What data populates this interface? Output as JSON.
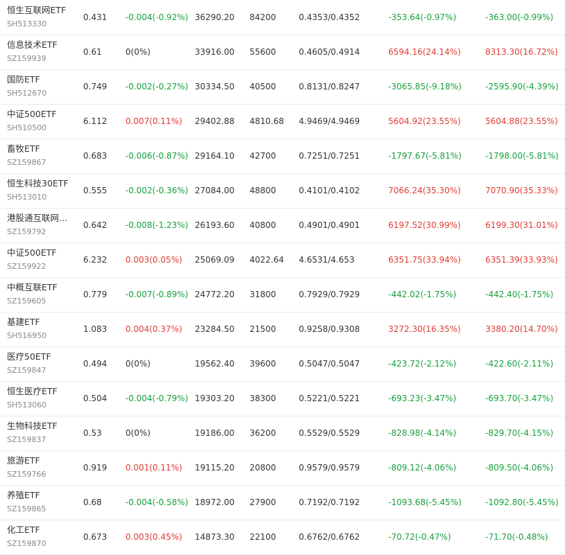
{
  "colors": {
    "up": "#e03b30",
    "down": "#16a03c",
    "flat": "#333333"
  },
  "rows": [
    {
      "name": "恒生互联网ETF",
      "code": "SH513330",
      "price": "0.431",
      "change": "-0.004(-0.92%)",
      "dir": "down",
      "amount": "36290.20",
      "volume": "84200",
      "bidask": "0.4353/0.4352",
      "v1": "-353.64(-0.97%)",
      "d1": "down",
      "v2": "-363.00(-0.99%)",
      "d2": "down"
    },
    {
      "name": "信息技术ETF",
      "code": "SZ159939",
      "price": "0.61",
      "change": "0(0%)",
      "dir": "flat",
      "amount": "33916.00",
      "volume": "55600",
      "bidask": "0.4605/0.4914",
      "v1": "6594.16(24.14%)",
      "d1": "up",
      "v2": "8313.30(16.72%)",
      "d2": "up"
    },
    {
      "name": "国防ETF",
      "code": "SH512670",
      "price": "0.749",
      "change": "-0.002(-0.27%)",
      "dir": "down",
      "amount": "30334.50",
      "volume": "40500",
      "bidask": "0.8131/0.8247",
      "v1": "-3065.85(-9.18%)",
      "d1": "down",
      "v2": "-2595.90(-4.39%)",
      "d2": "down"
    },
    {
      "name": "中证500ETF",
      "code": "SH510500",
      "price": "6.112",
      "change": "0.007(0.11%)",
      "dir": "up",
      "amount": "29402.88",
      "volume": "4810.68",
      "bidask": "4.9469/4.9469",
      "v1": "5604.92(23.55%)",
      "d1": "up",
      "v2": "5604.88(23.55%)",
      "d2": "up"
    },
    {
      "name": "畜牧ETF",
      "code": "SZ159867",
      "price": "0.683",
      "change": "-0.006(-0.87%)",
      "dir": "down",
      "amount": "29164.10",
      "volume": "42700",
      "bidask": "0.7251/0.7251",
      "v1": "-1797.67(-5.81%)",
      "d1": "down",
      "v2": "-1798.00(-5.81%)",
      "d2": "down"
    },
    {
      "name": "恒生科技30ETF",
      "code": "SH513010",
      "price": "0.555",
      "change": "-0.002(-0.36%)",
      "dir": "down",
      "amount": "27084.00",
      "volume": "48800",
      "bidask": "0.4101/0.4102",
      "v1": "7066.24(35.30%)",
      "d1": "up",
      "v2": "7070.90(35.33%)",
      "d2": "up"
    },
    {
      "name": "港股通互联网…",
      "code": "SZ159792",
      "price": "0.642",
      "change": "-0.008(-1.23%)",
      "dir": "down",
      "amount": "26193.60",
      "volume": "40800",
      "bidask": "0.4901/0.4901",
      "v1": "6197.52(30.99%)",
      "d1": "up",
      "v2": "6199.30(31.01%)",
      "d2": "up"
    },
    {
      "name": "中证500ETF",
      "code": "SZ159922",
      "price": "6.232",
      "change": "0.003(0.05%)",
      "dir": "up",
      "amount": "25069.09",
      "volume": "4022.64",
      "bidask": "4.6531/4.653",
      "v1": "6351.75(33.94%)",
      "d1": "up",
      "v2": "6351.39(33.93%)",
      "d2": "up"
    },
    {
      "name": "中概互联ETF",
      "code": "SZ159605",
      "price": "0.779",
      "change": "-0.007(-0.89%)",
      "dir": "down",
      "amount": "24772.20",
      "volume": "31800",
      "bidask": "0.7929/0.7929",
      "v1": "-442.02(-1.75%)",
      "d1": "down",
      "v2": "-442.40(-1.75%)",
      "d2": "down"
    },
    {
      "name": "基建ETF",
      "code": "SH516950",
      "price": "1.083",
      "change": "0.004(0.37%)",
      "dir": "up",
      "amount": "23284.50",
      "volume": "21500",
      "bidask": "0.9258/0.9308",
      "v1": "3272.30(16.35%)",
      "d1": "up",
      "v2": "3380.20(14.70%)",
      "d2": "up"
    },
    {
      "name": "医疗50ETF",
      "code": "SZ159847",
      "price": "0.494",
      "change": "0(0%)",
      "dir": "flat",
      "amount": "19562.40",
      "volume": "39600",
      "bidask": "0.5047/0.5047",
      "v1": "-423.72(-2.12%)",
      "d1": "down",
      "v2": "-422.60(-2.11%)",
      "d2": "down"
    },
    {
      "name": "恒生医疗ETF",
      "code": "SH513060",
      "price": "0.504",
      "change": "-0.004(-0.79%)",
      "dir": "down",
      "amount": "19303.20",
      "volume": "38300",
      "bidask": "0.5221/0.5221",
      "v1": "-693.23(-3.47%)",
      "d1": "down",
      "v2": "-693.70(-3.47%)",
      "d2": "down"
    },
    {
      "name": "生物科技ETF",
      "code": "SZ159837",
      "price": "0.53",
      "change": "0(0%)",
      "dir": "flat",
      "amount": "19186.00",
      "volume": "36200",
      "bidask": "0.5529/0.5529",
      "v1": "-828.98(-4.14%)",
      "d1": "down",
      "v2": "-829.70(-4.15%)",
      "d2": "down"
    },
    {
      "name": "旅游ETF",
      "code": "SZ159766",
      "price": "0.919",
      "change": "0.001(0.11%)",
      "dir": "up",
      "amount": "19115.20",
      "volume": "20800",
      "bidask": "0.9579/0.9579",
      "v1": "-809.12(-4.06%)",
      "d1": "down",
      "v2": "-809.50(-4.06%)",
      "d2": "down"
    },
    {
      "name": "养殖ETF",
      "code": "SZ159865",
      "price": "0.68",
      "change": "-0.004(-0.58%)",
      "dir": "down",
      "amount": "18972.00",
      "volume": "27900",
      "bidask": "0.7192/0.7192",
      "v1": "-1093.68(-5.45%)",
      "d1": "down",
      "v2": "-1092.80(-5.45%)",
      "d2": "down"
    },
    {
      "name": "化工ETF",
      "code": "SZ159870",
      "price": "0.673",
      "change": "0.003(0.45%)",
      "dir": "up",
      "amount": "14873.30",
      "volume": "22100",
      "bidask": "0.6762/0.6762",
      "v1": "-70.72(-0.47%)",
      "d1": "down",
      "v2": "-71.70(-0.48%)",
      "d2": "down"
    }
  ]
}
